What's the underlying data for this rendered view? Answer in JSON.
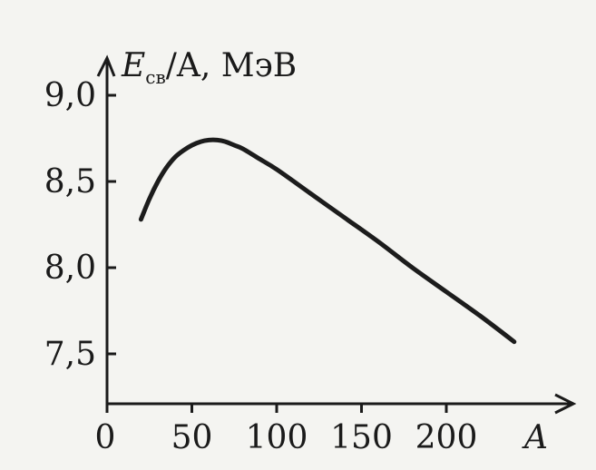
{
  "chart_data": {
    "type": "line",
    "x": [
      20,
      25,
      30,
      35,
      40,
      45,
      50,
      55,
      60,
      65,
      70,
      75,
      80,
      90,
      100,
      120,
      140,
      160,
      180,
      200,
      220,
      240
    ],
    "series": [
      {
        "values": [
          8.28,
          8.4,
          8.5,
          8.58,
          8.64,
          8.68,
          8.71,
          8.73,
          8.74,
          8.74,
          8.73,
          8.71,
          8.69,
          8.63,
          8.57,
          8.43,
          8.29,
          8.15,
          8.0,
          7.86,
          7.72,
          7.57
        ]
      }
    ],
    "ylabel_main": "E",
    "ylabel_sub": "св",
    "ylabel_rest": "/A, МэВ",
    "xlabel": "A",
    "xticks": [
      0,
      50,
      100,
      150,
      200
    ],
    "xtick_labels": [
      "0",
      "50",
      "100",
      "150",
      "200"
    ],
    "yticks": [
      7.5,
      8.0,
      8.5,
      9.0
    ],
    "ytick_labels": [
      "7,5",
      "8,0",
      "8,5",
      "9,0"
    ],
    "xlim": [
      0,
      250
    ],
    "ylim": [
      7.2,
      9.2
    ],
    "grid": false,
    "line_color": "#1c1c1c"
  }
}
